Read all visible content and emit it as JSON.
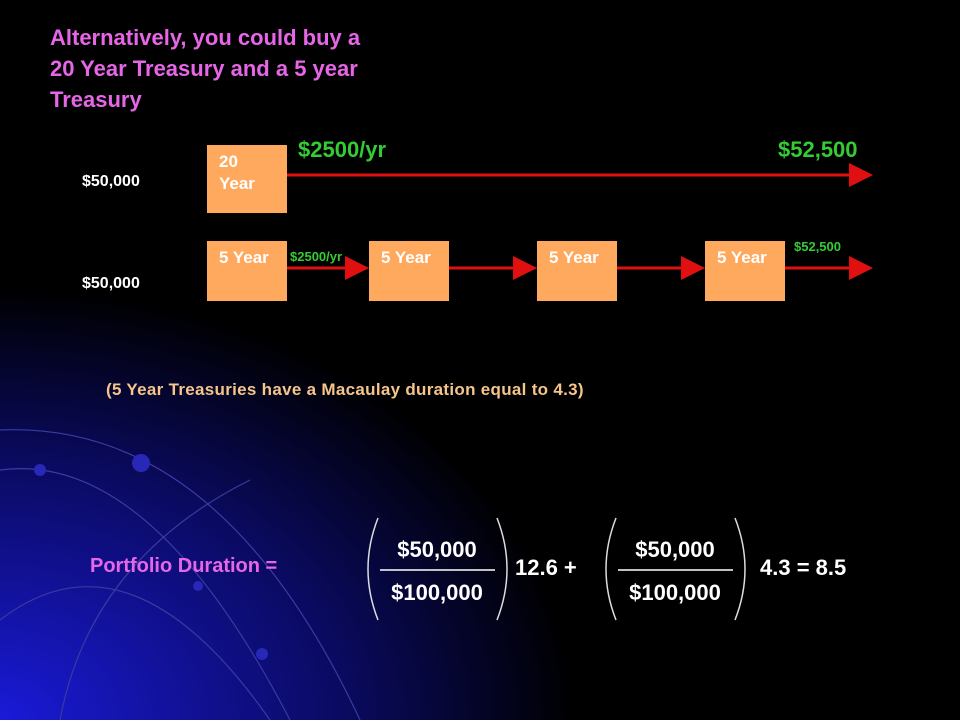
{
  "title": {
    "lines": [
      "Alternatively,  you could buy a",
      "20 Year Treasury and a 5 year",
      "Treasury"
    ]
  },
  "long_bond": {
    "amount": "$50,000",
    "box": "20 Year",
    "coupon": "$2500/yr",
    "final": "$52,500"
  },
  "short_bonds": {
    "amount": "$50,000",
    "boxes": [
      "5 Year",
      "5 Year",
      "5 Year",
      "5 Year"
    ],
    "coupon": "$2500/yr",
    "final": "$52,500"
  },
  "note": "(5 Year Treasuries have a Macaulay duration equal to 4.3)",
  "formula": {
    "label": "Portfolio Duration =",
    "fraction1": {
      "numerator": "$50,000",
      "denominator": "$100,000"
    },
    "term1": "12.6 +",
    "fraction2": {
      "numerator": "$50,000",
      "denominator": "$100,000"
    },
    "term2": "4.3 = 8.5"
  }
}
